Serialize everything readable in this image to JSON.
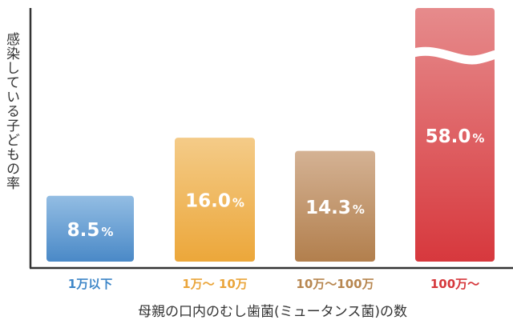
{
  "chart_data": {
    "type": "bar",
    "title": "",
    "xlabel": "母親の口内のむし歯菌(ミュータンス菌)の数",
    "ylabel": "感染している子どもの率",
    "categories": [
      "1万以下",
      "1万〜 10万",
      "10万〜100万",
      "100万〜"
    ],
    "values": [
      8.5,
      16.0,
      14.3,
      58.0
    ],
    "value_labels": [
      "8.5",
      "16.0",
      "14.3",
      "58.0"
    ],
    "unit": "%",
    "axis_break_on": "100万〜",
    "colors": [
      {
        "top": "#93bde3",
        "bottom": "#4a89c7",
        "label": "#3d86c8"
      },
      {
        "top": "#f4cb88",
        "bottom": "#eca73a",
        "label": "#eaa53b"
      },
      {
        "top": "#d4b294",
        "bottom": "#b27f4d",
        "label": "#b7864f"
      },
      {
        "top": "#e68b8c",
        "bottom": "#d7383d",
        "label": "#d6383c"
      }
    ]
  }
}
